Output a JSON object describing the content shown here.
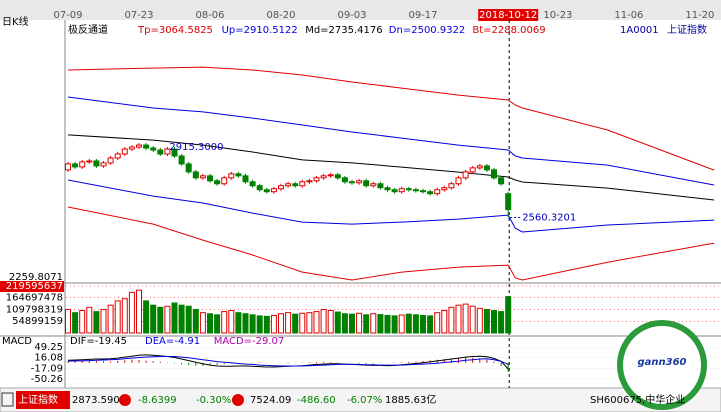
{
  "period_label": "日K线",
  "x_axis": {
    "labels": [
      "07-09",
      "07-23",
      "08-06",
      "08-20",
      "09-03",
      "09-17",
      "2018-10-12",
      "10-23",
      "11-06",
      "11-20"
    ]
  },
  "header": {
    "code": "1A0001",
    "name": "上证指数"
  },
  "chart_data": [
    {
      "type": "candlestick",
      "title": "极反通道",
      "legend_texts": [
        "Tp=3064.5825",
        "Up=2910.5122",
        "Md=2735.4176",
        "Dn=2500.9322",
        "Bt=2288.0069"
      ],
      "legend_colors": [
        "#e00000",
        "#0000e0",
        "#000000",
        "#0000e0",
        "#e00000"
      ],
      "up_color": "#e00000",
      "down_color": "#008000",
      "ylim": [
        2235,
        3530
      ],
      "open": [
        2800,
        2830,
        2815,
        2840,
        2845,
        2820,
        2835,
        2860,
        2880,
        2905,
        2915,
        2925,
        2910,
        2900,
        2880,
        2905,
        2870,
        2830,
        2790,
        2760,
        2770,
        2745,
        2730,
        2760,
        2780,
        2770,
        2740,
        2720,
        2700,
        2690,
        2705,
        2720,
        2730,
        2720,
        2740,
        2745,
        2760,
        2770,
        2775,
        2760,
        2740,
        2735,
        2745,
        2720,
        2730,
        2710,
        2700,
        2690,
        2705,
        2700,
        2695,
        2690,
        2680,
        2700,
        2710,
        2730,
        2760,
        2790,
        2810,
        2820,
        2800,
        2760,
        2680
      ],
      "high": [
        2840,
        2840,
        2850,
        2855,
        2855,
        2845,
        2870,
        2890,
        2915,
        2925,
        2935,
        2935,
        2920,
        2910,
        2915,
        2915,
        2880,
        2840,
        2800,
        2780,
        2780,
        2755,
        2770,
        2790,
        2790,
        2780,
        2750,
        2730,
        2710,
        2715,
        2730,
        2740,
        2740,
        2750,
        2755,
        2770,
        2780,
        2785,
        2785,
        2770,
        2750,
        2755,
        2755,
        2740,
        2740,
        2720,
        2710,
        2715,
        2715,
        2710,
        2705,
        2700,
        2710,
        2720,
        2740,
        2770,
        2800,
        2820,
        2830,
        2830,
        2810,
        2770,
        2690
      ],
      "low": [
        2790,
        2805,
        2805,
        2830,
        2810,
        2810,
        2825,
        2850,
        2870,
        2895,
        2905,
        2900,
        2890,
        2870,
        2870,
        2860,
        2820,
        2780,
        2750,
        2750,
        2735,
        2720,
        2720,
        2750,
        2760,
        2730,
        2710,
        2690,
        2680,
        2680,
        2695,
        2710,
        2710,
        2710,
        2730,
        2735,
        2750,
        2760,
        2750,
        2730,
        2725,
        2725,
        2710,
        2710,
        2700,
        2690,
        2680,
        2680,
        2690,
        2685,
        2680,
        2670,
        2670,
        2690,
        2700,
        2720,
        2750,
        2780,
        2800,
        2790,
        2750,
        2720,
        2560
      ],
      "close": [
        2830,
        2815,
        2840,
        2845,
        2820,
        2835,
        2860,
        2880,
        2905,
        2915,
        2925,
        2910,
        2900,
        2880,
        2905,
        2870,
        2830,
        2790,
        2760,
        2770,
        2745,
        2730,
        2760,
        2780,
        2770,
        2740,
        2720,
        2700,
        2690,
        2705,
        2720,
        2730,
        2720,
        2740,
        2745,
        2760,
        2770,
        2775,
        2760,
        2740,
        2735,
        2745,
        2720,
        2730,
        2710,
        2700,
        2690,
        2705,
        2700,
        2695,
        2690,
        2680,
        2700,
        2710,
        2730,
        2760,
        2790,
        2810,
        2820,
        2800,
        2760,
        2730,
        2600
      ],
      "channels": [
        {
          "color": "#e00000",
          "x": [
            0,
            12,
            19,
            26,
            33,
            40,
            47,
            55,
            62,
            63,
            64,
            76,
            91
          ],
          "values": [
            3303,
            3313,
            3318,
            3303,
            3278,
            3243,
            3212,
            3177,
            3152,
            3127,
            3112,
            3001,
            2799
          ]
        },
        {
          "color": "#0000e0",
          "x": [
            0,
            12,
            19,
            26,
            33,
            40,
            47,
            55,
            62,
            63,
            64,
            76,
            91
          ],
          "values": [
            3167,
            3112,
            3092,
            3061,
            3026,
            2991,
            2960,
            2925,
            2900,
            2870,
            2860,
            2824,
            2724
          ]
        },
        {
          "color": "#000000",
          "x": [
            0,
            12,
            19,
            26,
            33,
            40,
            47,
            55,
            62,
            63,
            64,
            76,
            91
          ],
          "values": [
            2976,
            2950,
            2925,
            2890,
            2850,
            2835,
            2814,
            2789,
            2764,
            2749,
            2739,
            2708,
            2648
          ]
        },
        {
          "color": "#0000e0",
          "x": [
            0,
            12,
            19,
            26,
            33,
            40,
            47,
            55,
            62,
            63,
            64,
            76,
            91
          ],
          "values": [
            2749,
            2668,
            2633,
            2582,
            2537,
            2527,
            2537,
            2552,
            2572,
            2506,
            2487,
            2522,
            2547
          ]
        },
        {
          "color": "#e00000",
          "x": [
            0,
            12,
            19,
            26,
            33,
            40,
            47,
            55,
            62,
            63,
            64,
            76,
            91
          ],
          "values": [
            2613,
            2527,
            2446,
            2371,
            2285,
            2245,
            2285,
            2310,
            2320,
            2255,
            2245,
            2335,
            2431
          ]
        }
      ],
      "price_labels": [
        {
          "value": 2915.3,
          "label": "2915.3000"
        },
        {
          "value": 2560.3201,
          "label": "2560.3201"
        },
        {
          "value": 2259.8071,
          "label": "2259.8071"
        }
      ]
    },
    {
      "type": "volume_bar",
      "ylim": [
        0,
        219595637
      ],
      "yticks": [
        219595637,
        164697478,
        109798319,
        54899159
      ],
      "values": [
        110000000,
        95000000,
        105000000,
        120000000,
        100000000,
        110000000,
        130000000,
        150000000,
        160000000,
        190000000,
        200000000,
        150000000,
        130000000,
        120000000,
        125000000,
        140000000,
        130000000,
        125000000,
        110000000,
        95000000,
        90000000,
        85000000,
        100000000,
        105000000,
        95000000,
        90000000,
        85000000,
        80000000,
        78000000,
        82000000,
        90000000,
        95000000,
        88000000,
        92000000,
        95000000,
        100000000,
        110000000,
        105000000,
        98000000,
        90000000,
        88000000,
        92000000,
        85000000,
        90000000,
        86000000,
        82000000,
        80000000,
        84000000,
        88000000,
        85000000,
        82000000,
        80000000,
        95000000,
        105000000,
        120000000,
        130000000,
        135000000,
        125000000,
        115000000,
        110000000,
        105000000,
        100000000,
        170000000
      ]
    },
    {
      "type": "macd",
      "title": "MACD",
      "ylim": [
        -66.8,
        65.8
      ],
      "yticks": [
        49.25,
        16.08,
        -17.09,
        -50.26
      ],
      "legend_texts": [
        "DIF=-19.45",
        "DEA=-4.91",
        "MACD=-29.07"
      ],
      "legend_colors": [
        "#000000",
        "#0000e0",
        "#b000b0"
      ],
      "dif_color": "#000000",
      "dea_color": "#0000e0",
      "up_color": "#e00000",
      "down_color": "#008000",
      "dif": [
        8,
        9,
        10,
        11,
        12,
        12,
        13,
        15,
        18,
        21,
        24,
        25,
        24,
        22,
        20,
        17,
        12,
        7,
        2,
        -3,
        -7,
        -10,
        -11,
        -11,
        -10,
        -10,
        -11,
        -12,
        -13,
        -13,
        -12,
        -11,
        -10,
        -9,
        -7,
        -5,
        -4,
        -3,
        -3,
        -4,
        -5,
        -6,
        -7,
        -8,
        -8,
        -9,
        -8,
        -6,
        -4,
        -2,
        0,
        3,
        6,
        9,
        12,
        15,
        18,
        20,
        21,
        19,
        14,
        5,
        -19.45
      ],
      "dea": [
        5,
        6,
        6,
        7,
        8,
        9,
        10,
        11,
        13,
        15,
        17,
        18,
        19,
        20,
        20,
        20,
        18,
        16,
        13,
        10,
        7,
        4,
        2,
        0,
        -2,
        -4,
        -5,
        -7,
        -8,
        -9,
        -10,
        -10,
        -10,
        -10,
        -9,
        -8,
        -7,
        -6,
        -5,
        -5,
        -5,
        -5,
        -6,
        -6,
        -7,
        -7,
        -7,
        -7,
        -6,
        -5,
        -4,
        -3,
        -1,
        1,
        3,
        5,
        8,
        10,
        12,
        13,
        10,
        5,
        -4.91
      ],
      "values": [
        5,
        6,
        7,
        8,
        6,
        5,
        4,
        6,
        8,
        10,
        9,
        7,
        5,
        3,
        1,
        -2,
        -5,
        -7,
        -9,
        -10,
        -8,
        -6,
        -4,
        -2,
        -1,
        0,
        1,
        2,
        1,
        0,
        -1,
        -2,
        -1,
        1,
        2,
        3,
        3,
        2,
        1,
        0,
        -1,
        -2,
        -3,
        -2,
        -1,
        0,
        1,
        2,
        3,
        4,
        6,
        8,
        10,
        12,
        14,
        16,
        17,
        16,
        14,
        10,
        4,
        -10,
        -29.07
      ]
    }
  ],
  "status_bar": {
    "items": [
      {
        "text": "上证指数",
        "color": "#ffffff"
      },
      {
        "text": "2873.5901",
        "color": "#000000"
      },
      {
        "text": "-8.6399",
        "color": "#008000"
      },
      {
        "text": "-0.30%",
        "color": "#008000"
      },
      {
        "text": "7524.09",
        "color": "#000000"
      },
      {
        "text": "-486.60",
        "color": "#008000"
      },
      {
        "text": "-6.07%",
        "color": "#008000"
      },
      {
        "text": "1885.63亿",
        "color": "#000000"
      },
      {
        "text": "SH600675,中华企业",
        "color": "#000000"
      }
    ]
  },
  "logo": {
    "text": "gann360"
  }
}
